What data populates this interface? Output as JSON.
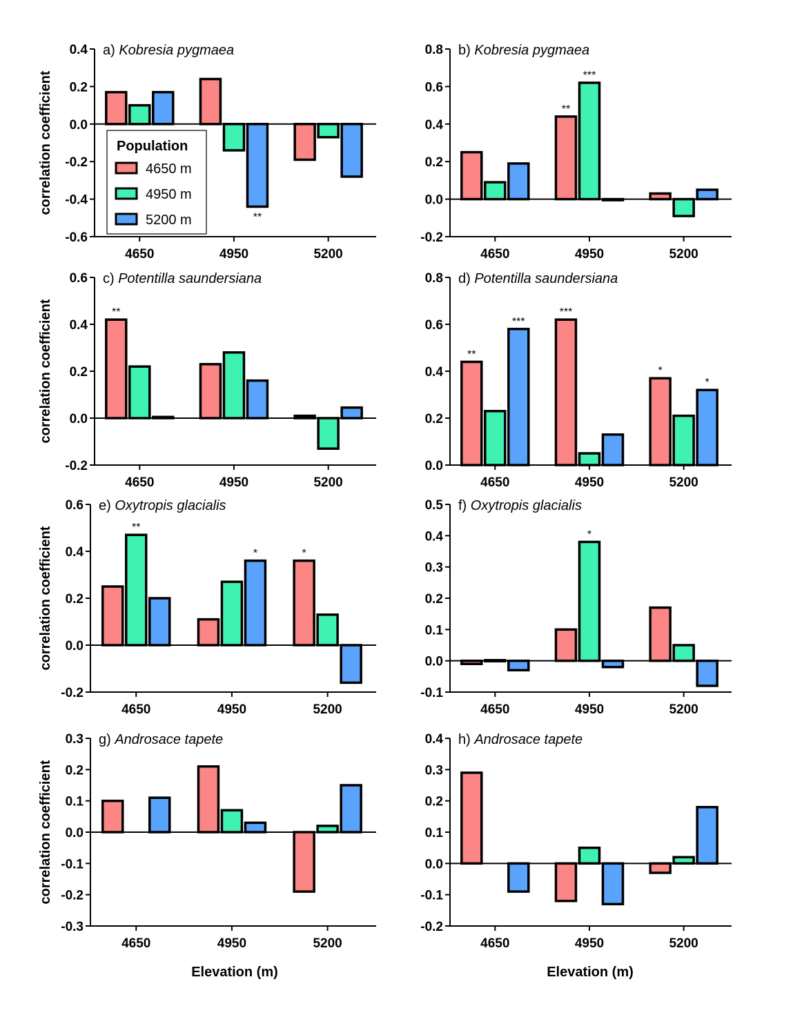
{
  "colors": {
    "4650 m": "#fc8585",
    "4950 m": "#40f2b2",
    "5200 m": "#5aa3fc",
    "stroke": "#000000"
  },
  "legend": {
    "title": "Population",
    "items": [
      "4650 m",
      "4950 m",
      "5200 m"
    ]
  },
  "y_axis_title": "correlation coefficient",
  "x_axis_title": "Elevation (m)",
  "chart_data": [
    {
      "type": "bar",
      "id": "a",
      "title_prefix": "a)",
      "title_species": "Kobresia pygmaea",
      "categories": [
        "4650",
        "4950",
        "5200"
      ],
      "ylim": [
        -0.6,
        0.4
      ],
      "yticks": [
        -0.6,
        -0.4,
        -0.2,
        0.0,
        0.2,
        0.4
      ],
      "series": [
        {
          "name": "4650 m",
          "values": [
            0.17,
            0.24,
            -0.19
          ]
        },
        {
          "name": "4950 m",
          "values": [
            0.1,
            -0.14,
            -0.07
          ]
        },
        {
          "name": "5200 m",
          "values": [
            0.17,
            -0.44,
            -0.28
          ]
        }
      ],
      "annotations": [
        {
          "category": "4950",
          "series": "5200 m",
          "label": "**"
        }
      ]
    },
    {
      "type": "bar",
      "id": "b",
      "title_prefix": "b)",
      "title_species": "Kobresia pygmaea",
      "categories": [
        "4650",
        "4950",
        "5200"
      ],
      "ylim": [
        -0.2,
        0.8
      ],
      "yticks": [
        -0.2,
        0.0,
        0.2,
        0.4,
        0.6,
        0.8
      ],
      "series": [
        {
          "name": "4650 m",
          "values": [
            0.25,
            0.44,
            0.03
          ]
        },
        {
          "name": "4950 m",
          "values": [
            0.09,
            0.62,
            -0.09
          ]
        },
        {
          "name": "5200 m",
          "values": [
            0.19,
            -0.005,
            0.05
          ]
        }
      ],
      "annotations": [
        {
          "category": "4950",
          "series": "4650 m",
          "label": "**"
        },
        {
          "category": "4950",
          "series": "4950 m",
          "label": "***"
        }
      ]
    },
    {
      "type": "bar",
      "id": "c",
      "title_prefix": "c)",
      "title_species": "Potentilla saundersiana",
      "categories": [
        "4650",
        "4950",
        "5200"
      ],
      "ylim": [
        -0.2,
        0.6
      ],
      "yticks": [
        -0.2,
        0.0,
        0.2,
        0.4,
        0.6
      ],
      "series": [
        {
          "name": "4650 m",
          "values": [
            0.42,
            0.23,
            0.01
          ]
        },
        {
          "name": "4950 m",
          "values": [
            0.22,
            0.28,
            -0.13
          ]
        },
        {
          "name": "5200 m",
          "values": [
            0.005,
            0.16,
            0.045
          ]
        }
      ],
      "annotations": [
        {
          "category": "4650",
          "series": "4650 m",
          "label": "**"
        }
      ]
    },
    {
      "type": "bar",
      "id": "d",
      "title_prefix": "d)",
      "title_species": "Potentilla saundersiana",
      "categories": [
        "4650",
        "4950",
        "5200"
      ],
      "ylim": [
        0.0,
        0.8
      ],
      "yticks": [
        0.0,
        0.2,
        0.4,
        0.6,
        0.8
      ],
      "series": [
        {
          "name": "4650 m",
          "values": [
            0.44,
            0.62,
            0.37
          ]
        },
        {
          "name": "4950 m",
          "values": [
            0.23,
            0.05,
            0.21
          ]
        },
        {
          "name": "5200 m",
          "values": [
            0.58,
            0.13,
            0.32
          ]
        }
      ],
      "annotations": [
        {
          "category": "4650",
          "series": "4650 m",
          "label": "**"
        },
        {
          "category": "4650",
          "series": "5200 m",
          "label": "***"
        },
        {
          "category": "4950",
          "series": "4650 m",
          "label": "***"
        },
        {
          "category": "5200",
          "series": "4650 m",
          "label": "*"
        },
        {
          "category": "5200",
          "series": "5200 m",
          "label": "*"
        }
      ]
    },
    {
      "type": "bar",
      "id": "e",
      "title_prefix": "e)",
      "title_species": "Oxytropis glacialis",
      "categories": [
        "4650",
        "4950",
        "5200"
      ],
      "ylim": [
        -0.2,
        0.6
      ],
      "yticks": [
        -0.2,
        0.0,
        0.2,
        0.4,
        0.6
      ],
      "series": [
        {
          "name": "4650 m",
          "values": [
            0.25,
            0.11,
            0.36
          ]
        },
        {
          "name": "4950 m",
          "values": [
            0.47,
            0.27,
            0.13
          ]
        },
        {
          "name": "5200 m",
          "values": [
            0.2,
            0.36,
            -0.16
          ]
        }
      ],
      "annotations": [
        {
          "category": "4650",
          "series": "4950 m",
          "label": "**"
        },
        {
          "category": "4950",
          "series": "5200 m",
          "label": "*"
        },
        {
          "category": "5200",
          "series": "4650 m",
          "label": "*"
        }
      ]
    },
    {
      "type": "bar",
      "id": "f",
      "title_prefix": "f)",
      "title_species": "Oxytropis glacialis",
      "categories": [
        "4650",
        "4950",
        "5200"
      ],
      "ylim": [
        -0.1,
        0.5
      ],
      "yticks": [
        -0.1,
        0.0,
        0.1,
        0.2,
        0.3,
        0.4,
        0.5
      ],
      "series": [
        {
          "name": "4650 m",
          "values": [
            -0.01,
            0.1,
            0.17
          ]
        },
        {
          "name": "4950 m",
          "values": [
            0.002,
            0.38,
            0.05
          ]
        },
        {
          "name": "5200 m",
          "values": [
            -0.03,
            -0.02,
            -0.08
          ]
        }
      ],
      "annotations": [
        {
          "category": "4950",
          "series": "4950 m",
          "label": "*"
        }
      ]
    },
    {
      "type": "bar",
      "id": "g",
      "title_prefix": "g)",
      "title_species": "Androsace tapete",
      "categories": [
        "4650",
        "4950",
        "5200"
      ],
      "ylim": [
        -0.3,
        0.3
      ],
      "yticks": [
        -0.3,
        -0.2,
        -0.1,
        0.0,
        0.1,
        0.2,
        0.3
      ],
      "series": [
        {
          "name": "4650 m",
          "values": [
            0.1,
            0.21,
            -0.19
          ]
        },
        {
          "name": "4950 m",
          "values": [
            null,
            0.07,
            0.02
          ]
        },
        {
          "name": "5200 m",
          "values": [
            0.11,
            0.03,
            0.15
          ]
        }
      ],
      "annotations": []
    },
    {
      "type": "bar",
      "id": "h",
      "title_prefix": "h)",
      "title_species": "Androsace tapete",
      "categories": [
        "4650",
        "4950",
        "5200"
      ],
      "ylim": [
        -0.2,
        0.4
      ],
      "yticks": [
        -0.2,
        -0.1,
        0.0,
        0.1,
        0.2,
        0.3,
        0.4
      ],
      "series": [
        {
          "name": "4650 m",
          "values": [
            0.29,
            -0.12,
            -0.03
          ]
        },
        {
          "name": "4950 m",
          "values": [
            null,
            0.05,
            0.02
          ]
        },
        {
          "name": "5200 m",
          "values": [
            -0.09,
            -0.13,
            0.18
          ]
        }
      ],
      "annotations": []
    }
  ]
}
